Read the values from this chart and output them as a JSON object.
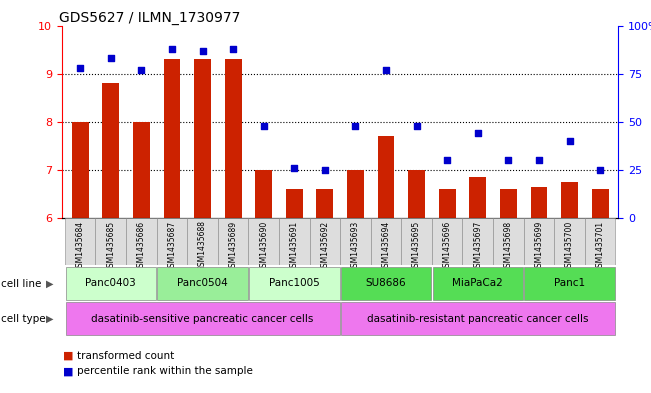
{
  "title": "GDS5627 / ILMN_1730977",
  "samples": [
    "GSM1435684",
    "GSM1435685",
    "GSM1435686",
    "GSM1435687",
    "GSM1435688",
    "GSM1435689",
    "GSM1435690",
    "GSM1435691",
    "GSM1435692",
    "GSM1435693",
    "GSM1435694",
    "GSM1435695",
    "GSM1435696",
    "GSM1435697",
    "GSM1435698",
    "GSM1435699",
    "GSM1435700",
    "GSM1435701"
  ],
  "transformed_count": [
    8.0,
    8.8,
    8.0,
    9.3,
    9.3,
    9.3,
    7.0,
    6.6,
    6.6,
    7.0,
    7.7,
    7.0,
    6.6,
    6.85,
    6.6,
    6.65,
    6.75,
    6.6
  ],
  "percentile_rank": [
    78,
    83,
    77,
    88,
    87,
    88,
    48,
    26,
    25,
    48,
    77,
    48,
    30,
    44,
    30,
    30,
    40,
    25
  ],
  "ylim_left": [
    6,
    10
  ],
  "ylim_right": [
    0,
    100
  ],
  "yticks_left": [
    6,
    7,
    8,
    9,
    10
  ],
  "yticks_right": [
    0,
    25,
    50,
    75,
    100
  ],
  "ytick_right_labels": [
    "0",
    "25",
    "50",
    "75",
    "100%"
  ],
  "bar_color": "#cc2200",
  "dot_color": "#0000cc",
  "cell_lines": [
    {
      "label": "Panc0403",
      "start": 0,
      "end": 2,
      "color": "#ccffcc"
    },
    {
      "label": "Panc0504",
      "start": 3,
      "end": 5,
      "color": "#99ee99"
    },
    {
      "label": "Panc1005",
      "start": 6,
      "end": 8,
      "color": "#ccffcc"
    },
    {
      "label": "SU8686",
      "start": 9,
      "end": 11,
      "color": "#55dd55"
    },
    {
      "label": "MiaPaCa2",
      "start": 12,
      "end": 14,
      "color": "#55dd55"
    },
    {
      "label": "Panc1",
      "start": 15,
      "end": 17,
      "color": "#55dd55"
    }
  ],
  "cell_types": [
    {
      "label": "dasatinib-sensitive pancreatic cancer cells",
      "start": 0,
      "end": 8,
      "color": "#ee77ee"
    },
    {
      "label": "dasatinib-resistant pancreatic cancer cells",
      "start": 9,
      "end": 17,
      "color": "#ee77ee"
    }
  ],
  "legend_bar_label": "transformed count",
  "legend_dot_label": "percentile rank within the sample",
  "bg_color": "#ffffff",
  "title_fontsize": 10,
  "bar_width": 0.55,
  "xlim": [
    -0.6,
    17.6
  ]
}
